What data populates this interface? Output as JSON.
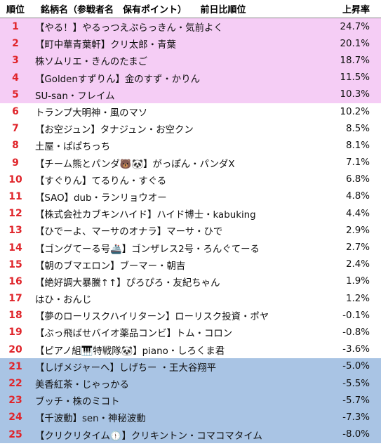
{
  "header": {
    "rank": "順位",
    "name": "銘柄名（参戦者名　保有ポイント）　　前日比順位",
    "rate": "上昇率"
  },
  "rows": [
    {
      "rank": "1",
      "name": "【やる！】やるっつえぷらっきん・気前よく",
      "rate": "24.7%"
    },
    {
      "rank": "2",
      "name": "【町中華青葉軒】クリ太郎・青葉",
      "rate": "20.1%"
    },
    {
      "rank": "3",
      "name": "株ソムリエ・きんのたまご",
      "rate": "18.7%"
    },
    {
      "rank": "4",
      "name": "【Goldenすずりん】金のすず・かりん",
      "rate": "11.5%"
    },
    {
      "rank": "5",
      "name": "SU-san・フレイム",
      "rate": "10.3%"
    },
    {
      "rank": "6",
      "name": "トランプ大明神・風のマソ",
      "rate": "10.2%"
    },
    {
      "rank": "7",
      "name": "【お空ジュン】タナジュン・お空クン",
      "rate": "8.5%"
    },
    {
      "rank": "8",
      "name": "土屋・ぱぱちっち",
      "rate": "8.1%"
    },
    {
      "rank": "9",
      "name": "【チーム熊とパンダ🐻🐼】がっぽん・パンダX",
      "rate": "7.1%"
    },
    {
      "rank": "10",
      "name": "【すぐりん】てるりん・すぐる",
      "rate": "6.8%"
    },
    {
      "rank": "11",
      "name": "【SAO】dub・ランリョウオー",
      "rate": "4.8%"
    },
    {
      "rank": "12",
      "name": "【株式会社カブキンハイド】ハイド博士・kabuking",
      "rate": "4.4%"
    },
    {
      "rank": "13",
      "name": "【ひでーよ、マーサのオナラ】マーサ・ひで",
      "rate": "2.9%"
    },
    {
      "rank": "14",
      "name": "【ゴングてーる号🚢】ゴンザレス2号・ろんぐてーる",
      "rate": "2.7%"
    },
    {
      "rank": "15",
      "name": "【朝のブマエロン】ブーマー・朝吉",
      "rate": "2.4%"
    },
    {
      "rank": "16",
      "name": "【絶好調大暴騰↑↑】ぴろぴろ・友紀ちゃん",
      "rate": "1.9%"
    },
    {
      "rank": "17",
      "name": "はひ・おんじ",
      "rate": "1.2%"
    },
    {
      "rank": "18",
      "name": "【夢のローリスクハイリターン】ローリスク投資・ポヤ",
      "rate": "-0.1%"
    },
    {
      "rank": "19",
      "name": "【ぶっ飛ばせバイオ薬品コンビ】トム・コロン",
      "rate": "-0.8%"
    },
    {
      "rank": "20",
      "name": "【ピアノ組🎹特戦隊🐼】piano・しろくま君",
      "rate": "-3.6%"
    },
    {
      "rank": "21",
      "name": "【しげメジャーへ】しげちー ・王大谷翔平",
      "rate": "-5.0%"
    },
    {
      "rank": "22",
      "name": "美香紅茶・じゃっかる",
      "rate": "-5.5%"
    },
    {
      "rank": "23",
      "name": "ブッチ・株のミコト",
      "rate": "-5.7%"
    },
    {
      "rank": "24",
      "name": "【千波動】sen・神秘波動",
      "rate": "-7.3%"
    },
    {
      "rank": "25",
      "name": "【クリクリタイム🕦】クリキントン・コマコマタイム",
      "rate": "-8.0%"
    }
  ],
  "colors": {
    "top_band": "#f5cdf5",
    "bottom_band": "#a9c4e4",
    "rank_text": "#e0252b"
  }
}
